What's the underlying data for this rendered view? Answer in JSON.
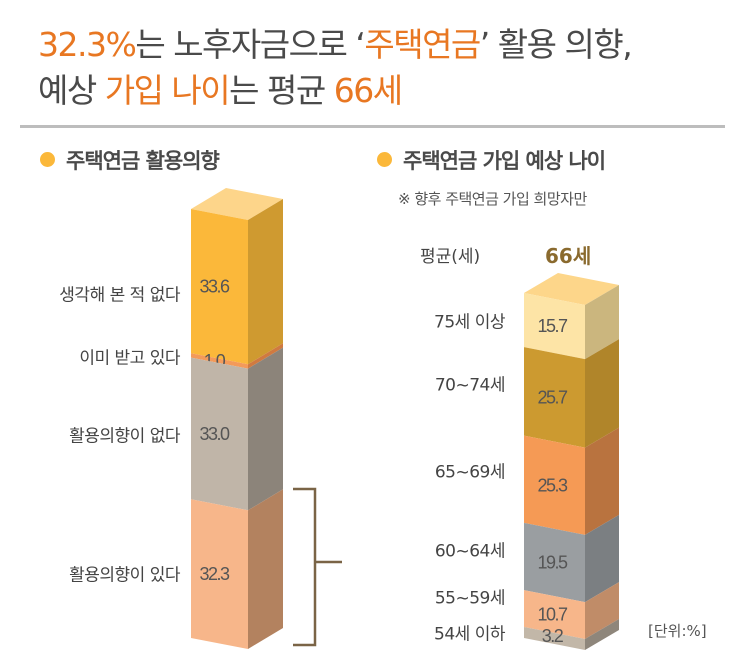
{
  "headline": {
    "line1": [
      {
        "text": "32.3%",
        "accent": true
      },
      {
        "text": "는 노후자금으로 ‘",
        "accent": false
      },
      {
        "text": "주택연금",
        "accent": true
      },
      {
        "text": "’ 활용 의향,",
        "accent": false
      }
    ],
    "line2": [
      {
        "text": "예상 ",
        "accent": false
      },
      {
        "text": "가입 나이",
        "accent": true
      },
      {
        "text": "는 평균 ",
        "accent": false
      },
      {
        "text": "66세",
        "accent": true
      }
    ]
  },
  "colors": {
    "accent": "#e87722",
    "text": "#4a4a4a",
    "bullet": "#fbb83a",
    "bracket": "#7a6446",
    "average": "#8a6a2e"
  },
  "chart_data": [
    {
      "type": "bar",
      "stacked": true,
      "title": "주택연금 활용의향",
      "unit": "%",
      "categories": [
        "생각해 본 적 없다",
        "이미 받고 있다",
        "활용의향이 없다",
        "활용의향이 있다"
      ],
      "values": [
        33.6,
        1.0,
        33.0,
        32.3
      ],
      "colors": [
        "#fbb83a",
        "#f39a5a",
        "#c0b5a8",
        "#f7b68a"
      ],
      "side_colors": [
        "#cf9a30",
        "#d07a40",
        "#8c847a",
        "#b3825f"
      ],
      "top_color": "#fdd58a"
    },
    {
      "type": "bar",
      "stacked": true,
      "title": "주택연금 가입 예상 나이",
      "note": "※ 향후 주택연금 가입 희망자만",
      "average_label": "평균(세)",
      "average_value": "66세",
      "unit_label": "[단위:%]",
      "categories": [
        "75세 이상",
        "70~74세",
        "65~69세",
        "60~64세",
        "55~59세",
        "54세 이하"
      ],
      "values": [
        15.7,
        25.7,
        25.3,
        19.5,
        10.7,
        3.2
      ],
      "colors": [
        "#fde4a6",
        "#cc9a30",
        "#f59a55",
        "#9a9ea1",
        "#f7b68a",
        "#c2b7a8"
      ],
      "side_colors": [
        "#cbb67e",
        "#b0852a",
        "#b9733f",
        "#7b7f82",
        "#c08c68",
        "#8e867b"
      ],
      "top_color": "#fdd68a"
    }
  ]
}
